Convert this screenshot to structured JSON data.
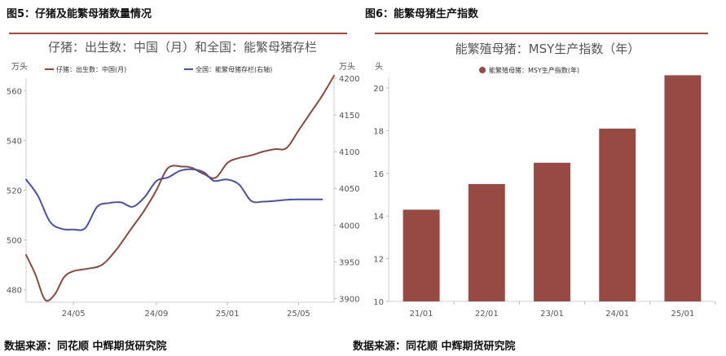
{
  "figures": {
    "left_label": "图5：仔猪及能繁母猪数量情况",
    "right_label": "图6：能繁母猪生产指数"
  },
  "sources": {
    "left": "数据来源：同花顺 中辉期货研究院",
    "right": "数据来源：同花顺 中辉期货研究院"
  },
  "colors": {
    "rule": "#b5443b",
    "piglet_line": "#8b4a3e",
    "sow_line": "#4a4fb0",
    "bar": "#974a42"
  },
  "chart_data": [
    {
      "type": "line",
      "title": "仔猪：出生数：中国（月）和全国：能繁母猪存栏",
      "left_unit": "万头",
      "right_unit": "万头",
      "x_ticks": [
        "24/05",
        "24/09",
        "25/01",
        "25/05"
      ],
      "y_left_ticks": [
        480,
        500,
        520,
        540,
        560
      ],
      "y_left_range": [
        475,
        565
      ],
      "y_right_ticks": [
        3900,
        3950,
        4000,
        4050,
        4100,
        4150,
        4200
      ],
      "y_right_range": [
        3895,
        4200
      ],
      "series": [
        {
          "name": "仔猪：出生数：中国(月)",
          "axis": "left",
          "points": [
            [
              0,
              494
            ],
            [
              0.4,
              486
            ],
            [
              0.8,
              476
            ],
            [
              1.2,
              478
            ],
            [
              1.6,
              485
            ],
            [
              2,
              487.5
            ],
            [
              2.6,
              488.5
            ],
            [
              3.2,
              490
            ],
            [
              3.8,
              496
            ],
            [
              4.4,
              504
            ],
            [
              5,
              512
            ],
            [
              5.5,
              520
            ],
            [
              6,
              529
            ],
            [
              6.6,
              529.5
            ],
            [
              7,
              529
            ],
            [
              7.5,
              526.5
            ],
            [
              8,
              525
            ],
            [
              8.5,
              531
            ],
            [
              9,
              533
            ],
            [
              9.5,
              534
            ],
            [
              10,
              535.5
            ],
            [
              10.5,
              536.5
            ],
            [
              11,
              537
            ],
            [
              11.5,
              544
            ],
            [
              12,
              551
            ],
            [
              12.5,
              558
            ],
            [
              13,
              566
            ]
          ]
        },
        {
          "name": "全国：能繁母猪存栏(右轴)",
          "axis": "right",
          "points": [
            [
              0,
              4062
            ],
            [
              0.5,
              4040
            ],
            [
              1,
              4005
            ],
            [
              1.5,
              3995
            ],
            [
              2,
              3994
            ],
            [
              2.5,
              3996
            ],
            [
              3,
              4025
            ],
            [
              3.5,
              4030
            ],
            [
              4,
              4031
            ],
            [
              4.5,
              4025
            ],
            [
              5,
              4038
            ],
            [
              5.5,
              4060
            ],
            [
              6,
              4065
            ],
            [
              6.5,
              4074
            ],
            [
              7,
              4076
            ],
            [
              7.5,
              4072
            ],
            [
              7.8,
              4063
            ],
            [
              8,
              4060
            ],
            [
              8.5,
              4062
            ],
            [
              9,
              4055
            ],
            [
              9.5,
              4033
            ],
            [
              10,
              4032
            ],
            [
              10.5,
              4033
            ],
            [
              11,
              4034.5
            ],
            [
              11.5,
              4035
            ],
            [
              12,
              4035
            ],
            [
              12.5,
              4035
            ]
          ]
        }
      ]
    },
    {
      "type": "bar",
      "title": "能繁殖母猪：MSY生产指数（年）",
      "ylabel": "头",
      "legend": "能繁殖母猪：MSY生产指数(年)",
      "categories": [
        "21/01",
        "22/01",
        "23/01",
        "24/01",
        "25/01"
      ],
      "values": [
        14.3,
        15.5,
        16.5,
        18.1,
        20.6
      ],
      "y_ticks": [
        10,
        12,
        14,
        16,
        18,
        20
      ],
      "ylim": [
        10,
        20.5
      ]
    }
  ]
}
